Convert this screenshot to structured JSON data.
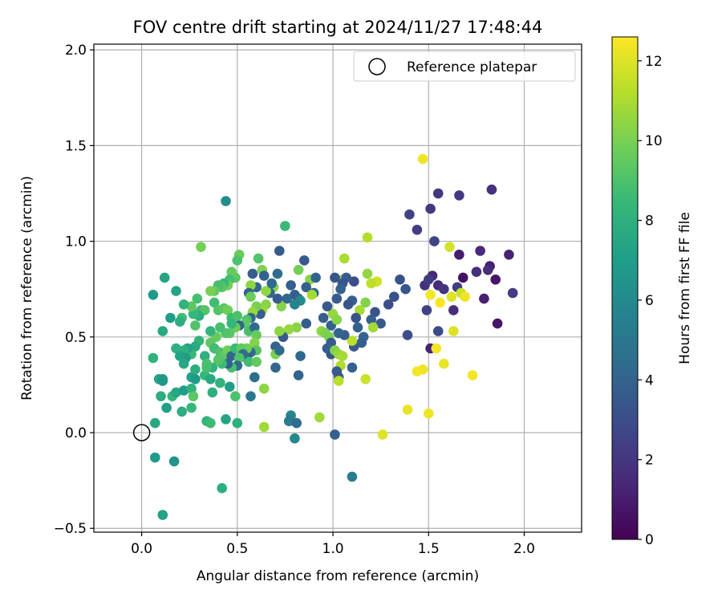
{
  "chart_data": {
    "type": "scatter",
    "title": "FOV centre drift starting at 2024/11/27 17:48:44",
    "xlabel": "Angular distance from reference (arcmin)",
    "ylabel": "Rotation from reference (arcmin)",
    "xlim": [
      -0.25,
      2.3
    ],
    "ylim": [
      -0.52,
      2.03
    ],
    "x_ticks": [
      0.0,
      0.5,
      1.0,
      1.5,
      2.0
    ],
    "x_tick_labels": [
      "0.0",
      "0.5",
      "1.0",
      "1.5",
      "2.0"
    ],
    "y_ticks": [
      -0.5,
      0.0,
      0.5,
      1.0,
      1.5,
      2.0
    ],
    "y_tick_labels": [
      "−0.5",
      "0.0",
      "0.5",
      "1.0",
      "1.5",
      "2.0"
    ],
    "grid": true,
    "legend": {
      "position": "upper-right",
      "entries": [
        "Reference platepar"
      ]
    },
    "reference_point": {
      "x": 0.0,
      "y": 0.0,
      "label": "Reference platepar"
    },
    "colormap": "viridis",
    "colorbar": {
      "label": "Hours from first FF file",
      "range": [
        0,
        12.6
      ],
      "ticks": [
        0,
        2,
        4,
        6,
        8,
        10,
        12
      ],
      "tick_labels": [
        "0",
        "2",
        "4",
        "6",
        "8",
        "10",
        "12"
      ]
    },
    "colorbar_stops": [
      "#440154",
      "#482878",
      "#3e4989",
      "#31688e",
      "#26828e",
      "#1f9e89",
      "#35b779",
      "#6ece58",
      "#b5de2b",
      "#fde725"
    ],
    "points": [
      [
        1.47,
        1.43,
        12.3
      ],
      [
        1.55,
        1.25,
        2.0
      ],
      [
        1.66,
        1.24,
        2.2
      ],
      [
        1.83,
        1.27,
        1.8
      ],
      [
        1.51,
        1.17,
        2.1
      ],
      [
        1.4,
        1.14,
        2.5
      ],
      [
        1.44,
        1.06,
        2.3
      ],
      [
        1.53,
        1.0,
        2.6
      ],
      [
        1.61,
        0.97,
        11.8
      ],
      [
        1.66,
        0.93,
        1.0
      ],
      [
        1.77,
        0.95,
        1.5
      ],
      [
        1.92,
        0.93,
        1.2
      ],
      [
        1.82,
        0.87,
        1.1
      ],
      [
        1.81,
        0.85,
        1.6
      ],
      [
        1.75,
        0.84,
        1.7
      ],
      [
        1.68,
        0.81,
        0.6
      ],
      [
        1.85,
        0.8,
        0.8
      ],
      [
        1.52,
        0.82,
        1.4
      ],
      [
        1.48,
        0.77,
        1.8
      ],
      [
        1.5,
        0.8,
        2.2
      ],
      [
        1.55,
        0.77,
        1.5
      ],
      [
        1.58,
        0.75,
        1.9
      ],
      [
        1.65,
        0.76,
        2.3
      ],
      [
        1.67,
        0.73,
        11.6
      ],
      [
        1.62,
        0.71,
        12.0
      ],
      [
        1.69,
        0.71,
        12.3
      ],
      [
        1.51,
        0.72,
        12.4
      ],
      [
        1.94,
        0.73,
        2.3
      ],
      [
        1.79,
        0.7,
        1.1
      ],
      [
        1.56,
        0.68,
        12.5
      ],
      [
        1.63,
        0.64,
        1.6
      ],
      [
        1.49,
        0.64,
        2.4
      ],
      [
        1.55,
        0.53,
        2.9
      ],
      [
        1.63,
        0.53,
        12.0
      ],
      [
        1.86,
        0.57,
        0.7
      ],
      [
        1.39,
        0.51,
        3.0
      ],
      [
        1.51,
        0.44,
        1.2
      ],
      [
        1.54,
        0.44,
        12.4
      ],
      [
        1.58,
        0.36,
        12.2
      ],
      [
        1.44,
        0.32,
        12.4
      ],
      [
        1.47,
        0.33,
        12.3
      ],
      [
        1.73,
        0.3,
        12.4
      ],
      [
        1.39,
        0.12,
        12.2
      ],
      [
        1.5,
        0.1,
        12.3
      ],
      [
        1.26,
        -0.01,
        12.0
      ],
      [
        1.35,
        0.8,
        3.2
      ],
      [
        1.38,
        0.75,
        3.4
      ],
      [
        1.32,
        0.71,
        3.1
      ],
      [
        1.29,
        0.67,
        3.0
      ],
      [
        1.22,
        0.63,
        3.3
      ],
      [
        1.25,
        0.57,
        3.5
      ],
      [
        1.2,
        0.59,
        3.8
      ],
      [
        1.21,
        0.55,
        10.8
      ],
      [
        1.23,
        0.79,
        11.7
      ],
      [
        1.2,
        0.78,
        11.4
      ],
      [
        1.18,
        1.02,
        11.2
      ],
      [
        1.18,
        0.83,
        10.5
      ],
      [
        1.17,
        0.68,
        10.2
      ],
      [
        1.14,
        0.64,
        10.9
      ],
      [
        1.17,
        0.28,
        11.6
      ],
      [
        1.11,
        0.79,
        3.0
      ],
      [
        1.05,
        0.8,
        10.4
      ],
      [
        1.07,
        0.81,
        3.6
      ],
      [
        1.06,
        0.91,
        11.0
      ],
      [
        1.05,
        0.78,
        3.4
      ],
      [
        1.01,
        0.81,
        3.3
      ],
      [
        1.04,
        0.75,
        3.9
      ],
      [
        1.02,
        0.7,
        3.6
      ],
      [
        1.1,
        0.69,
        3.8
      ],
      [
        1.08,
        0.67,
        3.4
      ],
      [
        1.12,
        0.6,
        3.2
      ],
      [
        1.13,
        0.55,
        3.9
      ],
      [
        1.16,
        0.5,
        4.0
      ],
      [
        1.15,
        0.47,
        3.7
      ],
      [
        1.11,
        0.45,
        3.5
      ],
      [
        1.1,
        0.48,
        11.3
      ],
      [
        1.06,
        0.51,
        3.6
      ],
      [
        1.03,
        0.52,
        4.1
      ],
      [
        0.99,
        0.56,
        3.9
      ],
      [
        1.0,
        0.62,
        10.6
      ],
      [
        1.02,
        0.59,
        10.3
      ],
      [
        0.97,
        0.66,
        3.5
      ],
      [
        0.95,
        0.6,
        3.7
      ],
      [
        0.94,
        0.53,
        10.4
      ],
      [
        0.96,
        0.52,
        10.1
      ],
      [
        0.98,
        0.5,
        10.0
      ],
      [
        0.99,
        0.47,
        3.6
      ],
      [
        0.97,
        0.44,
        3.8
      ],
      [
        0.99,
        0.41,
        3.4
      ],
      [
        1.01,
        0.43,
        10.2
      ],
      [
        1.03,
        0.41,
        10.6
      ],
      [
        1.05,
        0.4,
        10.9
      ],
      [
        1.04,
        0.35,
        11.1
      ],
      [
        1.02,
        0.32,
        3.7
      ],
      [
        1.03,
        0.29,
        3.5
      ],
      [
        1.03,
        0.27,
        11.3
      ],
      [
        1.1,
        0.34,
        3.9
      ],
      [
        1.01,
        -0.01,
        3.8
      ],
      [
        1.1,
        -0.23,
        5.3
      ],
      [
        0.93,
        0.08,
        10.8
      ],
      [
        0.85,
        0.9,
        3.5
      ],
      [
        0.88,
        0.8,
        10.3
      ],
      [
        0.86,
        0.76,
        3.8
      ],
      [
        0.91,
        0.81,
        4.0
      ],
      [
        0.9,
        0.73,
        4.1
      ],
      [
        0.89,
        0.72,
        10.9
      ],
      [
        0.82,
        0.85,
        9.9
      ],
      [
        0.8,
        0.72,
        3.7
      ],
      [
        0.82,
        0.7,
        4.0
      ],
      [
        0.83,
        0.69,
        6.1
      ],
      [
        0.8,
        0.67,
        5.6
      ],
      [
        0.78,
        0.77,
        3.9
      ],
      [
        0.76,
        0.7,
        4.2
      ],
      [
        0.73,
        0.66,
        10.2
      ],
      [
        0.71,
        0.7,
        3.6
      ],
      [
        0.86,
        0.57,
        3.8
      ],
      [
        0.81,
        0.55,
        10.3
      ],
      [
        0.77,
        0.54,
        10.6
      ],
      [
        0.74,
        0.5,
        3.5
      ],
      [
        0.72,
        0.53,
        10.4
      ],
      [
        0.7,
        0.45,
        4.0
      ],
      [
        0.7,
        0.41,
        10.0
      ],
      [
        0.72,
        0.43,
        4.3
      ],
      [
        0.7,
        0.34,
        4.1
      ],
      [
        0.83,
        0.4,
        4.2
      ],
      [
        0.82,
        0.3,
        4.0
      ],
      [
        0.78,
        0.09,
        5.7
      ],
      [
        0.77,
        0.06,
        5.2
      ],
      [
        0.81,
        0.05,
        4.5
      ],
      [
        0.8,
        -0.03,
        5.9
      ],
      [
        0.75,
        1.08,
        8.5
      ],
      [
        0.44,
        1.21,
        6.2
      ],
      [
        0.72,
        0.95,
        3.6
      ],
      [
        0.71,
        0.83,
        4.4
      ],
      [
        0.69,
        0.76,
        10.2
      ],
      [
        0.67,
        0.73,
        4.0
      ],
      [
        0.65,
        0.74,
        10.5
      ],
      [
        0.68,
        0.78,
        4.3
      ],
      [
        0.63,
        0.85,
        10.1
      ],
      [
        0.64,
        0.82,
        3.9
      ],
      [
        0.65,
        0.67,
        10.3
      ],
      [
        0.63,
        0.64,
        10.7
      ],
      [
        0.62,
        0.62,
        3.8
      ],
      [
        0.6,
        0.66,
        10.0
      ],
      [
        0.61,
        0.91,
        9.1
      ],
      [
        0.6,
        0.76,
        4.1
      ],
      [
        0.58,
        0.83,
        3.7
      ],
      [
        0.57,
        0.77,
        10.4
      ],
      [
        0.56,
        0.73,
        3.9
      ],
      [
        0.57,
        0.71,
        9.7
      ],
      [
        0.58,
        0.63,
        10.6
      ],
      [
        0.57,
        0.6,
        4.2
      ],
      [
        0.55,
        0.59,
        9.0
      ],
      [
        0.54,
        0.57,
        9.4
      ],
      [
        0.56,
        0.53,
        8.9
      ],
      [
        0.59,
        0.55,
        4.4
      ],
      [
        0.6,
        0.51,
        9.6
      ],
      [
        0.59,
        0.47,
        10.2
      ],
      [
        0.6,
        0.43,
        9.2
      ],
      [
        0.57,
        0.42,
        4.3
      ],
      [
        0.55,
        0.44,
        9.8
      ],
      [
        0.55,
        0.39,
        3.7
      ],
      [
        0.53,
        0.4,
        4.0
      ],
      [
        0.56,
        0.37,
        8.7
      ],
      [
        0.6,
        0.37,
        9.5
      ],
      [
        0.59,
        0.29,
        4.6
      ],
      [
        0.64,
        0.23,
        10.4
      ],
      [
        0.57,
        0.19,
        5.0
      ],
      [
        0.64,
        0.03,
        10.8
      ],
      [
        0.51,
        0.93,
        9.7
      ],
      [
        0.5,
        0.9,
        9.0
      ],
      [
        0.49,
        0.81,
        9.3
      ],
      [
        0.47,
        0.84,
        9.6
      ],
      [
        0.46,
        0.8,
        8.8
      ],
      [
        0.45,
        0.77,
        9.9
      ],
      [
        0.43,
        0.78,
        8.5
      ],
      [
        0.42,
        0.76,
        9.2
      ],
      [
        0.4,
        0.77,
        8.9
      ],
      [
        0.38,
        0.74,
        9.5
      ],
      [
        0.36,
        0.74,
        10.0
      ],
      [
        0.38,
        0.68,
        8.7
      ],
      [
        0.4,
        0.64,
        9.1
      ],
      [
        0.43,
        0.65,
        9.4
      ],
      [
        0.45,
        0.64,
        9.8
      ],
      [
        0.47,
        0.6,
        8.6
      ],
      [
        0.5,
        0.61,
        9.0
      ],
      [
        0.51,
        0.56,
        4.1
      ],
      [
        0.49,
        0.55,
        9.7
      ],
      [
        0.46,
        0.52,
        9.3
      ],
      [
        0.47,
        0.57,
        8.4
      ],
      [
        0.44,
        0.52,
        9.1
      ],
      [
        0.41,
        0.55,
        8.8
      ],
      [
        0.39,
        0.5,
        9.6
      ],
      [
        0.36,
        0.53,
        8.3
      ],
      [
        0.36,
        0.47,
        9.4
      ],
      [
        0.38,
        0.44,
        8.7
      ],
      [
        0.41,
        0.42,
        9.0
      ],
      [
        0.43,
        0.4,
        9.3
      ],
      [
        0.45,
        0.43,
        9.8
      ],
      [
        0.47,
        0.4,
        4.2
      ],
      [
        0.49,
        0.44,
        8.5
      ],
      [
        0.52,
        0.44,
        9.5
      ],
      [
        0.53,
        0.41,
        4.5
      ],
      [
        0.51,
        0.39,
        9.1
      ],
      [
        0.5,
        0.35,
        4.4
      ],
      [
        0.47,
        0.34,
        8.9
      ],
      [
        0.45,
        0.36,
        4.0
      ],
      [
        0.42,
        0.36,
        8.6
      ],
      [
        0.4,
        0.38,
        9.2
      ],
      [
        0.37,
        0.34,
        8.2
      ],
      [
        0.33,
        0.4,
        8.0
      ],
      [
        0.34,
        0.36,
        9.0
      ],
      [
        0.31,
        0.64,
        8.6
      ],
      [
        0.33,
        0.64,
        9.2
      ],
      [
        0.3,
        0.61,
        7.9
      ],
      [
        0.27,
        0.62,
        8.4
      ],
      [
        0.28,
        0.56,
        9.1
      ],
      [
        0.29,
        0.7,
        8.8
      ],
      [
        0.26,
        0.66,
        9.4
      ],
      [
        0.31,
        0.97,
        9.9
      ],
      [
        0.3,
        0.48,
        8.3
      ],
      [
        0.28,
        0.45,
        7.7
      ],
      [
        0.26,
        0.41,
        8.5
      ],
      [
        0.24,
        0.44,
        7.3
      ],
      [
        0.22,
        0.43,
        8.0
      ],
      [
        0.23,
        0.39,
        6.9
      ],
      [
        0.22,
        0.36,
        7.5
      ],
      [
        0.21,
        0.6,
        8.7
      ],
      [
        0.2,
        0.58,
        7.9
      ],
      [
        0.22,
        0.67,
        8.2
      ],
      [
        0.18,
        0.74,
        7.3
      ],
      [
        0.12,
        0.81,
        7.4
      ],
      [
        0.15,
        0.6,
        7.0
      ],
      [
        0.11,
        0.53,
        7.6
      ],
      [
        0.18,
        0.44,
        8.0
      ],
      [
        0.2,
        0.4,
        7.2
      ],
      [
        0.06,
        0.72,
        6.8
      ],
      [
        0.06,
        0.39,
        8.1
      ],
      [
        0.09,
        0.28,
        7.4
      ],
      [
        0.11,
        0.28,
        7.0
      ],
      [
        0.11,
        0.27,
        6.6
      ],
      [
        0.1,
        0.19,
        7.8
      ],
      [
        0.13,
        0.13,
        7.1
      ],
      [
        0.16,
        0.19,
        8.3
      ],
      [
        0.18,
        0.21,
        7.5
      ],
      [
        0.22,
        0.22,
        7.0
      ],
      [
        0.21,
        0.11,
        7.8
      ],
      [
        0.26,
        0.23,
        8.1
      ],
      [
        0.26,
        0.29,
        7.3
      ],
      [
        0.28,
        0.28,
        6.8
      ],
      [
        0.28,
        0.33,
        7.9
      ],
      [
        0.33,
        0.3,
        8.4
      ],
      [
        0.34,
        0.34,
        8.8
      ],
      [
        0.36,
        0.28,
        7.6
      ],
      [
        0.37,
        0.21,
        7.9
      ],
      [
        0.27,
        0.19,
        9.3
      ],
      [
        0.26,
        0.13,
        8.4
      ],
      [
        0.41,
        0.26,
        8.2
      ],
      [
        0.46,
        0.24,
        7.0
      ],
      [
        0.49,
        0.19,
        9.0
      ],
      [
        0.34,
        0.06,
        8.1
      ],
      [
        0.36,
        0.05,
        8.6
      ],
      [
        0.44,
        0.07,
        7.4
      ],
      [
        0.5,
        0.05,
        8.0
      ],
      [
        0.07,
        0.05,
        7.5
      ],
      [
        0.07,
        -0.13,
        6.8
      ],
      [
        0.17,
        -0.15,
        6.5
      ],
      [
        0.42,
        -0.29,
        7.9
      ],
      [
        0.11,
        -0.43,
        7.2
      ]
    ]
  }
}
